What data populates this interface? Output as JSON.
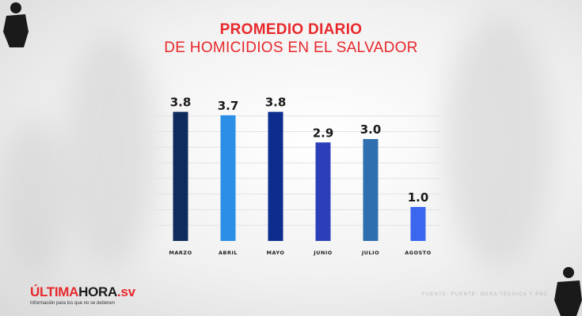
{
  "title_line1": "PROMEDIO DIARIO",
  "title_line2": "DE HOMICIDIOS EN EL SALVADOR",
  "chart_data": {
    "type": "bar",
    "categories": [
      "MARZO",
      "ABRIL",
      "MAYO",
      "JUNIO",
      "JULIO",
      "AGOSTO"
    ],
    "values": [
      3.8,
      3.7,
      3.8,
      2.9,
      3.0,
      1.0
    ],
    "value_labels": [
      "3.8",
      "3.7",
      "3.8",
      "2.9",
      "3.0",
      "1.0"
    ],
    "colors": [
      "#0f2a5c",
      "#2b8fe8",
      "#0c2d8e",
      "#2c3fb8",
      "#2f6fb0",
      "#3b67ef"
    ],
    "ylim": [
      0,
      4
    ],
    "grid": true
  },
  "logo": {
    "part1": "ÚLTIMA",
    "part2": "HORA",
    "part3": ".sv",
    "tagline": "Información para los que no se detienen"
  },
  "source": "FUENTE: FUENTE: MESA TÉCNICA Y PNC"
}
